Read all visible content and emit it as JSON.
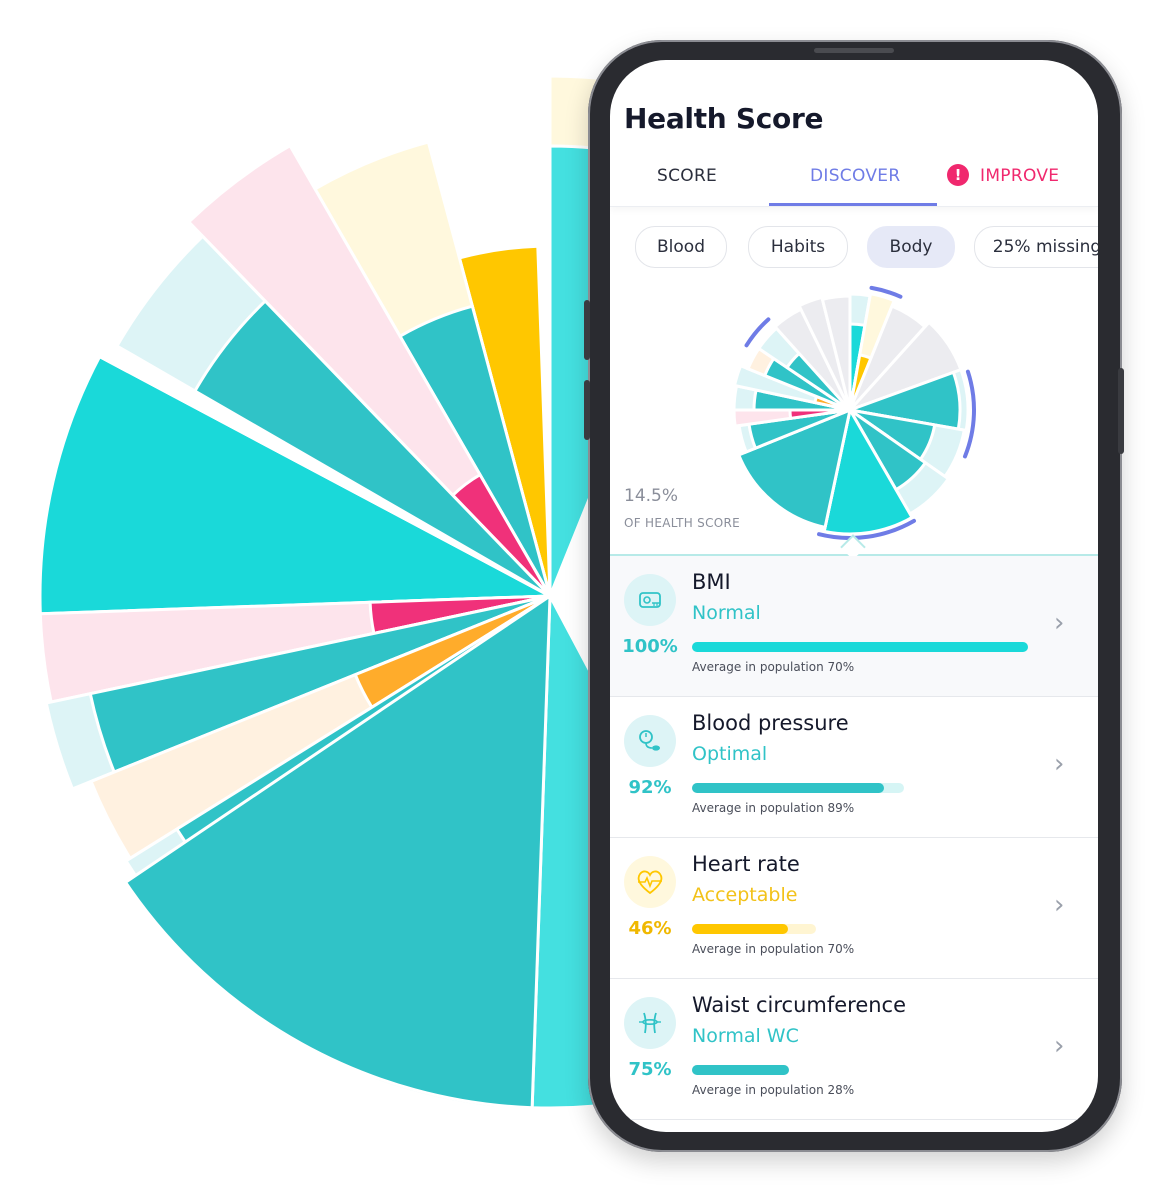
{
  "colors": {
    "teal_dark": "#30c3c7",
    "teal": "#44e0e0",
    "teal_bright": "#1ad9d9",
    "teal_pale": "#ddf4f6",
    "yellow": "#ffc700",
    "yellow_pale": "#fff8dd",
    "orange": "#ffac2b",
    "orange_pale": "#fff1e0",
    "pink": "#f0317a",
    "pink_pale": "#fde4ec",
    "grey_pale": "#ececf0",
    "accent": "#6f7ce6",
    "alert": "#f0286e"
  },
  "screen": {
    "title": "Health Score",
    "tabs": [
      {
        "label": "SCORE"
      },
      {
        "label": "DISCOVER"
      },
      {
        "label": "IMPROVE"
      }
    ],
    "alert_glyph": "!",
    "chips": [
      {
        "label": "Blood"
      },
      {
        "label": "Habits"
      },
      {
        "label": "Body"
      },
      {
        "label": "25% missing"
      }
    ],
    "summary": {
      "percent": "14.5%",
      "caption": "OF HEALTH SCORE"
    },
    "items": [
      {
        "name": "BMI",
        "status": "Normal",
        "percent": "100%",
        "fill": 1.0,
        "track": 1.0,
        "average": "Average in population 70%",
        "icon": "tape-measure-icon"
      },
      {
        "name": "Blood pressure",
        "status": "Optimal",
        "percent": "92%",
        "fill": 0.92,
        "track": 0.63,
        "average": "Average in population 89%",
        "icon": "blood-pressure-cuff-icon"
      },
      {
        "name": "Heart rate",
        "status": "Acceptable",
        "percent": "46%",
        "fill": 0.46,
        "track": 0.37,
        "average": "Average in population 70%",
        "icon": "heart-pulse-icon"
      },
      {
        "name": "Waist circumference",
        "status": "Normal WC",
        "percent": "75%",
        "fill": 0.75,
        "track": 0.29,
        "average": "Average in population 28%",
        "icon": "waist-icon"
      }
    ]
  }
}
